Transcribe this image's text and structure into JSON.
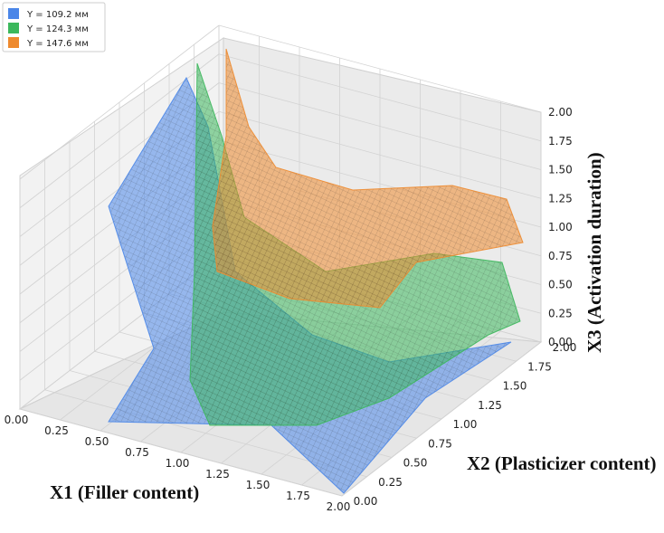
{
  "chart_data": {
    "type": "surface3d",
    "title": "",
    "legend": {
      "placement": "top-left",
      "entries": [
        {
          "label": "Y = 109.2 мм",
          "color": "#4a86e8"
        },
        {
          "label": "Y = 124.3 мм",
          "color": "#3cb85c"
        },
        {
          "label": "Y = 147.6 мм",
          "color": "#ee8a2e"
        }
      ]
    },
    "axes": {
      "x1": {
        "label": "X1 (Filler content)",
        "range": [
          0,
          2
        ],
        "ticks": [
          "0.00",
          "0.25",
          "0.50",
          "0.75",
          "1.00",
          "1.25",
          "1.50",
          "1.75",
          "2.00"
        ]
      },
      "x2": {
        "label": "X2 (Plasticizer content)",
        "range": [
          0,
          2
        ],
        "ticks": [
          "0.00",
          "0.25",
          "0.50",
          "0.75",
          "1.00",
          "1.25",
          "1.50",
          "1.75",
          "2.00"
        ]
      },
      "x3": {
        "label": "X3 (Activation duration)",
        "range": [
          0,
          2
        ],
        "ticks": [
          "0.00",
          "0.25",
          "0.50",
          "0.75",
          "1.00",
          "1.25",
          "1.50",
          "1.75",
          "2.00"
        ]
      }
    },
    "grid": true,
    "series": [
      {
        "label": "Y = 109.2 мм",
        "color": "#4a86e8"
      },
      {
        "label": "Y = 124.3 мм",
        "color": "#3cb85c"
      },
      {
        "label": "Y = 147.6 мм",
        "color": "#ee8a2e"
      }
    ]
  }
}
